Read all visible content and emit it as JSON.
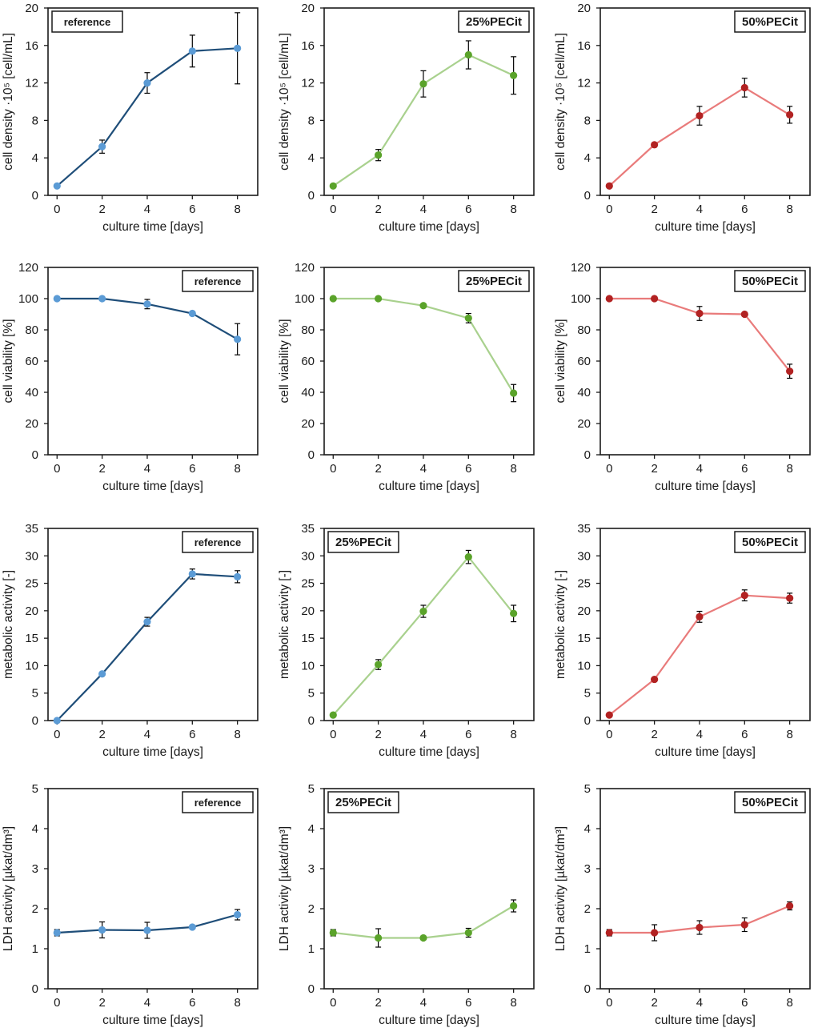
{
  "colors": {
    "reference_line": "#1f4e79",
    "reference_marker": "#5b9bd5",
    "pecit25_line": "#a9d18e",
    "pecit25_marker": "#5aa32a",
    "pecit50_line": "#e97b7b",
    "pecit50_marker": "#b22222",
    "axis": "#1a1a1a"
  },
  "chart_data": [
    {
      "id": "density-reference",
      "type": "line",
      "row": 0,
      "col": 0,
      "label": "reference",
      "label_pos": "top-left",
      "ylabel": "cell density ·10⁵ [cell/mL]",
      "xlabel": "culture time [days]",
      "ylim": [
        0,
        20
      ],
      "yticks": [
        0,
        4,
        8,
        12,
        16,
        20
      ],
      "xticks": [
        0,
        2,
        4,
        6,
        8
      ],
      "x": [
        0,
        2,
        4,
        6,
        8
      ],
      "values": [
        1.0,
        5.2,
        12.0,
        15.4,
        15.7
      ],
      "errors": [
        0,
        0.7,
        1.1,
        1.7,
        3.8
      ],
      "series_name": "reference"
    },
    {
      "id": "density-25pecit",
      "type": "line",
      "row": 0,
      "col": 1,
      "label": "25%PECit",
      "label_pos": "top-right",
      "ylabel": "cell density ·10⁵ [cell/mL]",
      "xlabel": "culture time [days]",
      "ylim": [
        0,
        20
      ],
      "yticks": [
        0,
        4,
        8,
        12,
        16,
        20
      ],
      "xticks": [
        0,
        2,
        4,
        6,
        8
      ],
      "x": [
        0,
        2,
        4,
        6,
        8
      ],
      "values": [
        1.0,
        4.3,
        11.9,
        15.0,
        12.8
      ],
      "errors": [
        0,
        0.6,
        1.4,
        1.5,
        2.0
      ],
      "series_name": "25%PECit"
    },
    {
      "id": "density-50pecit",
      "type": "line",
      "row": 0,
      "col": 2,
      "label": "50%PECit",
      "label_pos": "top-right",
      "ylabel": "cell density ·10⁵ [cell/mL]",
      "xlabel": "culture time [days]",
      "ylim": [
        0,
        20
      ],
      "yticks": [
        0,
        4,
        8,
        12,
        16,
        20
      ],
      "xticks": [
        0,
        2,
        4,
        6,
        8
      ],
      "x": [
        0,
        2,
        4,
        6,
        8
      ],
      "values": [
        1.0,
        5.4,
        8.5,
        11.5,
        8.6
      ],
      "errors": [
        0,
        0,
        1.0,
        1.0,
        0.9
      ],
      "series_name": "50%PECit"
    },
    {
      "id": "viability-reference",
      "type": "line",
      "row": 1,
      "col": 0,
      "label": "reference",
      "label_pos": "top-right",
      "ylabel": "cell viability [%]",
      "xlabel": "culture time [days]",
      "ylim": [
        0,
        120
      ],
      "yticks": [
        0,
        20,
        40,
        60,
        80,
        100,
        120
      ],
      "xticks": [
        0,
        2,
        4,
        6,
        8
      ],
      "x": [
        0,
        2,
        4,
        6,
        8
      ],
      "values": [
        100,
        100,
        96.5,
        90.5,
        74
      ],
      "errors": [
        0,
        0,
        3,
        0,
        10
      ],
      "series_name": "reference"
    },
    {
      "id": "viability-25pecit",
      "type": "line",
      "row": 1,
      "col": 1,
      "label": "25%PECit",
      "label_pos": "top-right",
      "ylabel": "cell viability [%]",
      "xlabel": "culture time [days]",
      "ylim": [
        0,
        120
      ],
      "yticks": [
        0,
        20,
        40,
        60,
        80,
        100,
        120
      ],
      "xticks": [
        0,
        2,
        4,
        6,
        8
      ],
      "x": [
        0,
        2,
        4,
        6,
        8
      ],
      "values": [
        100,
        100,
        95.5,
        87.5,
        39.5
      ],
      "errors": [
        0,
        0,
        0,
        3,
        5.5
      ],
      "series_name": "25%PECit"
    },
    {
      "id": "viability-50pecit",
      "type": "line",
      "row": 1,
      "col": 2,
      "label": "50%PECit",
      "label_pos": "top-right",
      "ylabel": "cell viability [%]",
      "xlabel": "culture time [days]",
      "ylim": [
        0,
        120
      ],
      "yticks": [
        0,
        20,
        40,
        60,
        80,
        100,
        120
      ],
      "xticks": [
        0,
        2,
        4,
        6,
        8
      ],
      "x": [
        0,
        2,
        4,
        6,
        8
      ],
      "values": [
        100,
        100,
        90.5,
        90,
        53.5
      ],
      "errors": [
        0,
        0,
        4.5,
        0,
        4.5
      ],
      "series_name": "50%PECit"
    },
    {
      "id": "metabolic-reference",
      "type": "line",
      "row": 2,
      "col": 0,
      "label": "reference",
      "label_pos": "top-right",
      "ylabel": "metabolic activity [-]",
      "xlabel": "culture time [days]",
      "ylim": [
        0,
        35
      ],
      "yticks": [
        0,
        5,
        10,
        15,
        20,
        25,
        30,
        35
      ],
      "xticks": [
        0,
        2,
        4,
        6,
        8
      ],
      "x": [
        0,
        2,
        4,
        6,
        8
      ],
      "values": [
        0,
        8.5,
        18.0,
        26.7,
        26.2
      ],
      "errors": [
        0,
        0,
        0.8,
        0.9,
        1.1
      ],
      "series_name": "reference"
    },
    {
      "id": "metabolic-25pecit",
      "type": "line",
      "row": 2,
      "col": 1,
      "label": "25%PECit",
      "label_pos": "top-left",
      "ylabel": "metabolic activity [-]",
      "xlabel": "culture time [days]",
      "ylim": [
        0,
        35
      ],
      "yticks": [
        0,
        5,
        10,
        15,
        20,
        25,
        30,
        35
      ],
      "xticks": [
        0,
        2,
        4,
        6,
        8
      ],
      "x": [
        0,
        2,
        4,
        6,
        8
      ],
      "values": [
        1.0,
        10.2,
        19.9,
        29.8,
        19.5
      ],
      "errors": [
        0,
        0.9,
        1.1,
        1.2,
        1.5
      ],
      "series_name": "25%PECit"
    },
    {
      "id": "metabolic-50pecit",
      "type": "line",
      "row": 2,
      "col": 2,
      "label": "50%PECit",
      "label_pos": "top-right",
      "ylabel": "metabolic activity [-]",
      "xlabel": "culture time [days]",
      "ylim": [
        0,
        35
      ],
      "yticks": [
        0,
        5,
        10,
        15,
        20,
        25,
        30,
        35
      ],
      "xticks": [
        0,
        2,
        4,
        6,
        8
      ],
      "x": [
        0,
        2,
        4,
        6,
        8
      ],
      "values": [
        1.0,
        7.5,
        18.9,
        22.8,
        22.3
      ],
      "errors": [
        0,
        0,
        1.0,
        1.0,
        0.9
      ],
      "series_name": "50%PECit"
    },
    {
      "id": "ldh-reference",
      "type": "line",
      "row": 3,
      "col": 0,
      "label": "reference",
      "label_pos": "top-right",
      "ylabel": "LDH activity [µkat/dm³]",
      "xlabel": "culture time [days]",
      "ylim": [
        0,
        5
      ],
      "yticks": [
        0,
        1,
        2,
        3,
        4,
        5
      ],
      "xticks": [
        0,
        2,
        4,
        6,
        8
      ],
      "x": [
        0,
        2,
        4,
        6,
        8
      ],
      "values": [
        1.4,
        1.47,
        1.46,
        1.54,
        1.85
      ],
      "errors": [
        0.08,
        0.2,
        0.2,
        0,
        0.13
      ],
      "series_name": "reference"
    },
    {
      "id": "ldh-25pecit",
      "type": "line",
      "row": 3,
      "col": 1,
      "label": "25%PECit",
      "label_pos": "top-left",
      "ylabel": "LDH activity [µkat/dm³]",
      "xlabel": "culture time [days]",
      "ylim": [
        0,
        5
      ],
      "yticks": [
        0,
        1,
        2,
        3,
        4,
        5
      ],
      "xticks": [
        0,
        2,
        4,
        6,
        8
      ],
      "x": [
        0,
        2,
        4,
        6,
        8
      ],
      "values": [
        1.4,
        1.27,
        1.27,
        1.4,
        2.07
      ],
      "errors": [
        0.08,
        0.23,
        0,
        0.11,
        0.15
      ],
      "series_name": "25%PECit"
    },
    {
      "id": "ldh-50pecit",
      "type": "line",
      "row": 3,
      "col": 2,
      "label": "50%PECit",
      "label_pos": "top-right",
      "ylabel": "LDH activity [µkat/dm³]",
      "xlabel": "culture time [days]",
      "ylim": [
        0,
        5
      ],
      "yticks": [
        0,
        1,
        2,
        3,
        4,
        5
      ],
      "xticks": [
        0,
        2,
        4,
        6,
        8
      ],
      "x": [
        0,
        2,
        4,
        6,
        8
      ],
      "values": [
        1.4,
        1.4,
        1.53,
        1.6,
        2.07
      ],
      "errors": [
        0.08,
        0.2,
        0.17,
        0.17,
        0.1
      ],
      "series_name": "50%PECit"
    }
  ]
}
